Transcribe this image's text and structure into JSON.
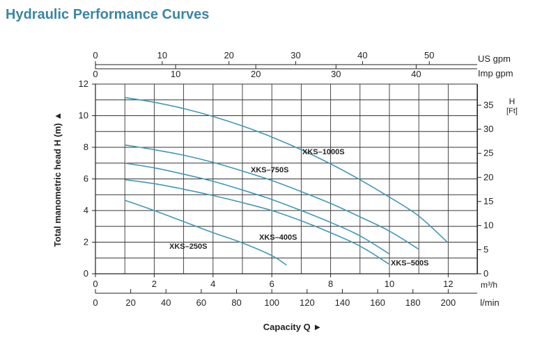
{
  "page": {
    "title": "Hydraulic Performance Curves"
  },
  "colors": {
    "title": "#3a86a4",
    "curve": "#3f98b8",
    "grid": "#333333"
  },
  "chart_data": {
    "type": "line",
    "title": "Hydraulic Performance Curves",
    "xlabel": "Capacity Q",
    "ylabel": "Total manometric head H (m)",
    "x_unit": "m³/h",
    "y_unit": "m",
    "xlim": [
      0,
      13
    ],
    "ylim": [
      0,
      12
    ],
    "x_ticks": [
      0,
      2,
      4,
      6,
      8,
      10,
      12
    ],
    "y_ticks": [
      0,
      2,
      4,
      6,
      8,
      10,
      12
    ],
    "grid": true,
    "secondary_axes": {
      "us_gpm": {
        "label": "US  gpm",
        "ticks": [
          0,
          10,
          20,
          30,
          40,
          50
        ]
      },
      "imp_gpm": {
        "label": "Imp gpm",
        "ticks": [
          0,
          10,
          20,
          30,
          40
        ]
      },
      "l_min": {
        "label": "l/min",
        "ticks": [
          0,
          20,
          40,
          60,
          80,
          100,
          120,
          140,
          160,
          180,
          200
        ]
      },
      "h_ft": {
        "label": "H",
        "unit": "[Ft]",
        "ticks": [
          0,
          5,
          10,
          15,
          20,
          25,
          30,
          35
        ]
      }
    },
    "series": [
      {
        "name": "XKS–1000S",
        "x": [
          1,
          2,
          3,
          4,
          5,
          6,
          7,
          8,
          9,
          10,
          11,
          12
        ],
        "y": [
          11.15,
          10.85,
          10.45,
          9.95,
          9.35,
          8.65,
          7.85,
          6.95,
          5.95,
          4.85,
          3.65,
          1.95
        ]
      },
      {
        "name": "XKS–750S",
        "x": [
          1,
          2,
          3,
          4,
          5,
          6,
          7,
          8,
          9,
          10,
          11
        ],
        "y": [
          8.15,
          7.85,
          7.5,
          7.05,
          6.5,
          5.9,
          5.2,
          4.45,
          3.6,
          2.7,
          1.55
        ]
      },
      {
        "name": "XKS–500S",
        "x": [
          1,
          2,
          3,
          4,
          5,
          6,
          7,
          8,
          9,
          10
        ],
        "y": [
          7.0,
          6.7,
          6.3,
          5.85,
          5.3,
          4.7,
          4.0,
          3.25,
          2.4,
          1.25
        ]
      },
      {
        "name": "XKS–400S",
        "x": [
          1,
          2,
          3,
          4,
          5,
          6,
          7,
          8,
          9,
          10
        ],
        "y": [
          5.95,
          5.7,
          5.35,
          4.95,
          4.5,
          4.0,
          3.35,
          2.6,
          1.75,
          0.6
        ]
      },
      {
        "name": "XKS–250S",
        "x": [
          1,
          2,
          3,
          4,
          5,
          6,
          6.5
        ],
        "y": [
          4.65,
          4.0,
          3.3,
          2.6,
          1.95,
          1.15,
          0.55
        ]
      }
    ]
  }
}
